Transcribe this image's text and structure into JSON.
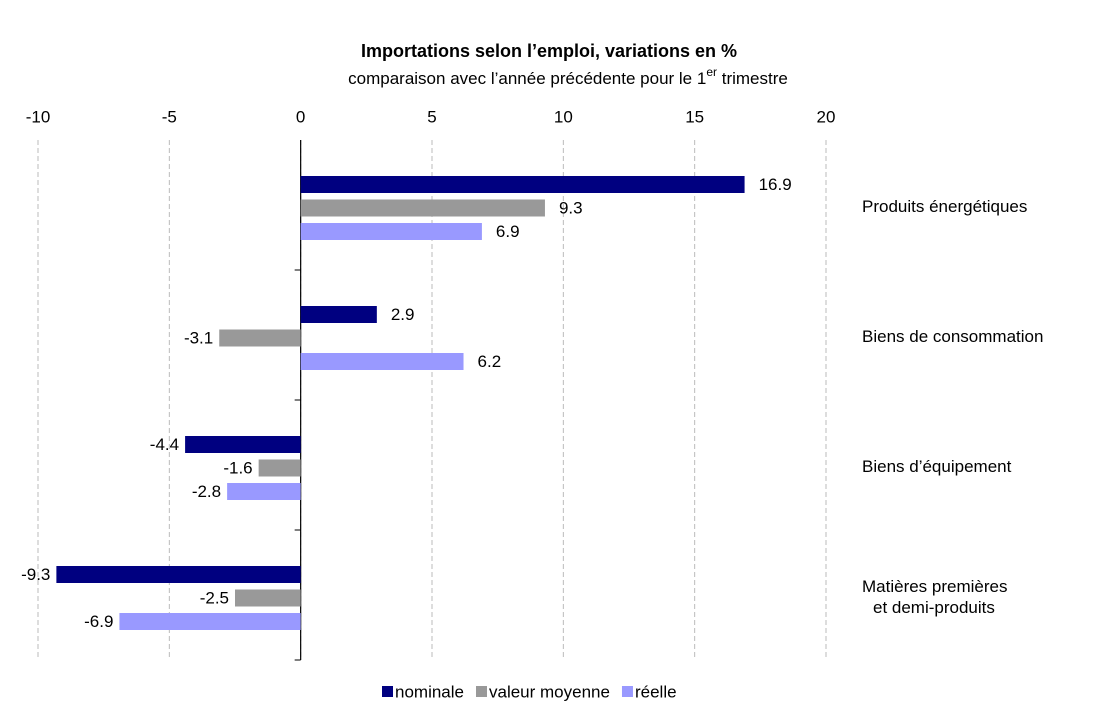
{
  "chart_data": {
    "type": "hbar",
    "title": "Importations selon l’emploi, variations en %",
    "subtitle": [
      "comparaison avec l’année précédente pour le 1",
      "er",
      " trimestre"
    ],
    "categories": [
      [
        "Produits énergétiques"
      ],
      [
        "Biens de consommation"
      ],
      [
        "Biens d’équipement"
      ],
      [
        "Matières premières",
        "et demi-produits"
      ]
    ],
    "series": [
      {
        "name": "nominale",
        "color": "#000080",
        "values": [
          16.9,
          2.9,
          -4.4,
          -9.3
        ]
      },
      {
        "name": "valeur moyenne",
        "color": "#999999",
        "values": [
          9.3,
          -3.1,
          -1.6,
          -2.5
        ]
      },
      {
        "name": "réelle",
        "color": "#9999ff",
        "values": [
          6.9,
          6.2,
          -2.8,
          -6.9
        ]
      }
    ],
    "xlim": [
      -10,
      20
    ],
    "xticks": [
      -10,
      -5,
      0,
      5,
      10,
      15,
      20
    ],
    "grid": true
  }
}
